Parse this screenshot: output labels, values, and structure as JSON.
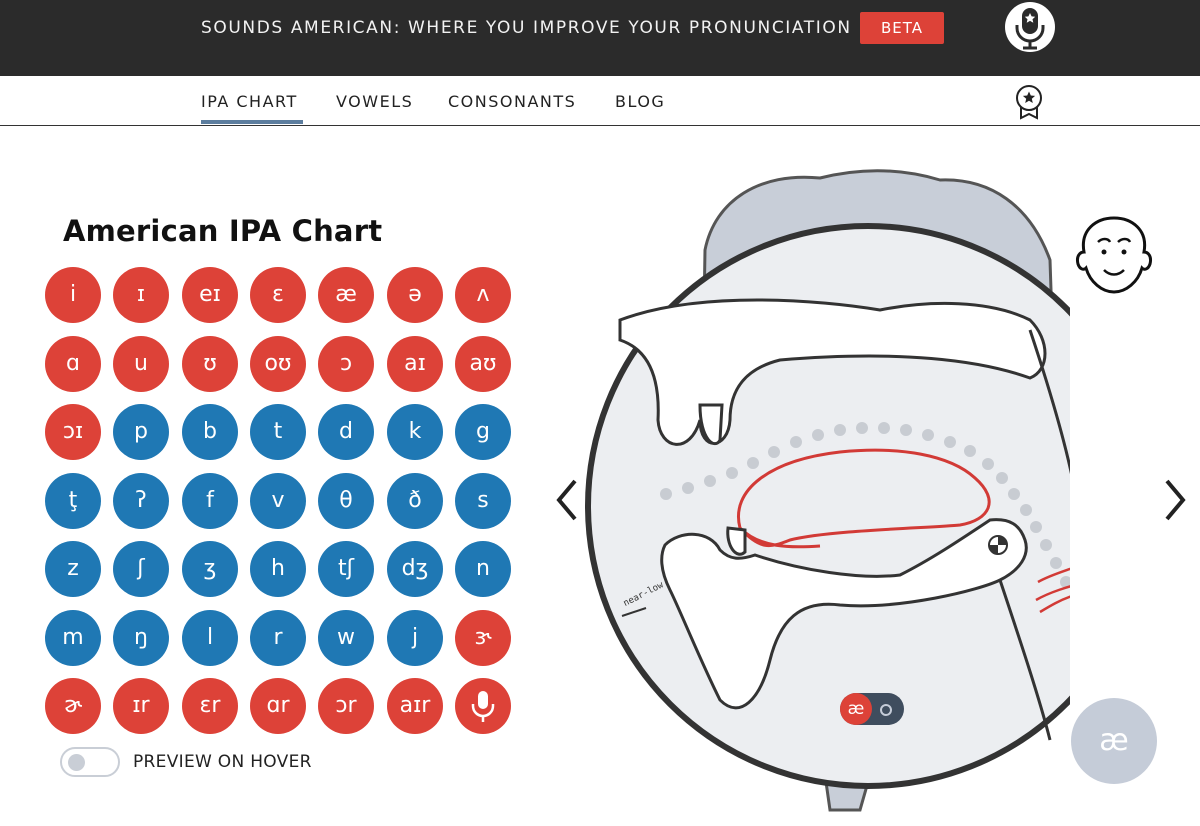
{
  "header": {
    "title": "SOUNDS AMERICAN: WHERE YOU IMPROVE YOUR PRONUNCIATION",
    "beta_label": "BETA"
  },
  "nav": {
    "items": [
      "IPA CHART",
      "VOWELS",
      "CONSONANTS",
      "BLOG"
    ],
    "active": "IPA CHART"
  },
  "chart": {
    "title": "American IPA Chart",
    "symbols": [
      {
        "s": "i",
        "type": "vowel"
      },
      {
        "s": "ɪ",
        "type": "vowel"
      },
      {
        "s": "eɪ",
        "type": "vowel"
      },
      {
        "s": "ɛ",
        "type": "vowel"
      },
      {
        "s": "æ",
        "type": "vowel"
      },
      {
        "s": "ə",
        "type": "vowel"
      },
      {
        "s": "ʌ",
        "type": "vowel"
      },
      {
        "s": "ɑ",
        "type": "vowel"
      },
      {
        "s": "u",
        "type": "vowel"
      },
      {
        "s": "ʊ",
        "type": "vowel"
      },
      {
        "s": "oʊ",
        "type": "vowel"
      },
      {
        "s": "ɔ",
        "type": "vowel"
      },
      {
        "s": "aɪ",
        "type": "vowel"
      },
      {
        "s": "aʊ",
        "type": "vowel"
      },
      {
        "s": "ɔɪ",
        "type": "vowel"
      },
      {
        "s": "p",
        "type": "consonant"
      },
      {
        "s": "b",
        "type": "consonant"
      },
      {
        "s": "t",
        "type": "consonant"
      },
      {
        "s": "d",
        "type": "consonant"
      },
      {
        "s": "k",
        "type": "consonant"
      },
      {
        "s": "g",
        "type": "consonant"
      },
      {
        "s": "ţ",
        "type": "consonant"
      },
      {
        "s": "ʔ",
        "type": "consonant"
      },
      {
        "s": "f",
        "type": "consonant"
      },
      {
        "s": "v",
        "type": "consonant"
      },
      {
        "s": "θ",
        "type": "consonant"
      },
      {
        "s": "ð",
        "type": "consonant"
      },
      {
        "s": "s",
        "type": "consonant"
      },
      {
        "s": "z",
        "type": "consonant"
      },
      {
        "s": "ʃ",
        "type": "consonant"
      },
      {
        "s": "ʒ",
        "type": "consonant"
      },
      {
        "s": "h",
        "type": "consonant"
      },
      {
        "s": "tʃ",
        "type": "consonant"
      },
      {
        "s": "dʒ",
        "type": "consonant"
      },
      {
        "s": "n",
        "type": "consonant"
      },
      {
        "s": "m",
        "type": "consonant"
      },
      {
        "s": "ŋ",
        "type": "consonant"
      },
      {
        "s": "l",
        "type": "consonant"
      },
      {
        "s": "r",
        "type": "consonant"
      },
      {
        "s": "w",
        "type": "consonant"
      },
      {
        "s": "j",
        "type": "consonant"
      },
      {
        "s": "ɝ",
        "type": "vowel"
      },
      {
        "s": "ɚ",
        "type": "vowel"
      },
      {
        "s": "ɪr",
        "type": "vowel"
      },
      {
        "s": "ɛr",
        "type": "vowel"
      },
      {
        "s": "ɑr",
        "type": "vowel"
      },
      {
        "s": "ɔr",
        "type": "vowel"
      },
      {
        "s": "aɪr",
        "type": "vowel"
      },
      {
        "s": "",
        "type": "mic",
        "icon": "microphone-icon"
      }
    ],
    "preview_toggle": {
      "label": "PREVIEW ON HOVER",
      "on": false
    }
  },
  "diagram": {
    "label": "near-low",
    "selected_symbol": "æ",
    "mini_toggle_symbol": "æ"
  },
  "colors": {
    "vowel": "#dd4238",
    "consonant": "#1f78b4",
    "header_bg": "#2b2b2b",
    "nav_active": "#5c7d9e"
  }
}
